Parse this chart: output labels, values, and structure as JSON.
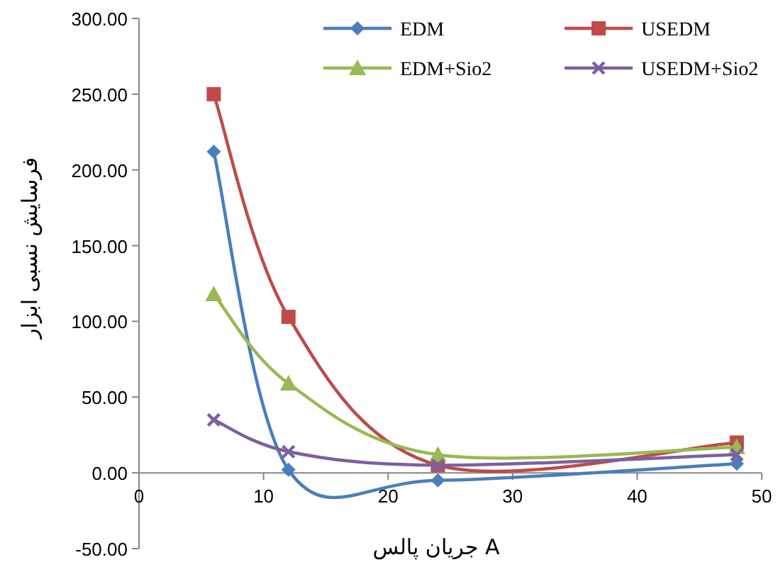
{
  "chart_data": {
    "type": "line",
    "xlabel": "جریان پالس A",
    "ylabel": "فرسایش نسبی ابزار",
    "x": [
      6,
      12,
      24,
      48
    ],
    "series": [
      {
        "name": "EDM",
        "color": "#4a7ebb",
        "marker": "diamond",
        "values": [
          212,
          2,
          -5,
          6
        ]
      },
      {
        "name": "USEDM",
        "color": "#be4b48",
        "marker": "square",
        "values": [
          250,
          103,
          5,
          20
        ]
      },
      {
        "name": "EDM+Sio2",
        "color": "#98b954",
        "marker": "triangle",
        "values": [
          118,
          59,
          12,
          17
        ]
      },
      {
        "name": "USEDM+Sio2",
        "color": "#7d60a0",
        "marker": "cross",
        "values": [
          35,
          14,
          5,
          12
        ]
      }
    ],
    "xlim": [
      0,
      50
    ],
    "xticks": [
      0,
      10,
      20,
      30,
      40,
      50
    ],
    "ylim": [
      -50,
      300
    ],
    "yticks": [
      {
        "value": -50,
        "label": "-50.00"
      },
      {
        "value": 0,
        "label": "0.00"
      },
      {
        "value": 50,
        "label": "50.00"
      },
      {
        "value": 100,
        "label": "100.00"
      },
      {
        "value": 150,
        "label": "150.00"
      },
      {
        "value": 200,
        "label": "200.00"
      },
      {
        "value": 250,
        "label": "250.00"
      },
      {
        "value": 300,
        "label": "300.00"
      }
    ],
    "legend": "top right",
    "line_style": "solid"
  }
}
